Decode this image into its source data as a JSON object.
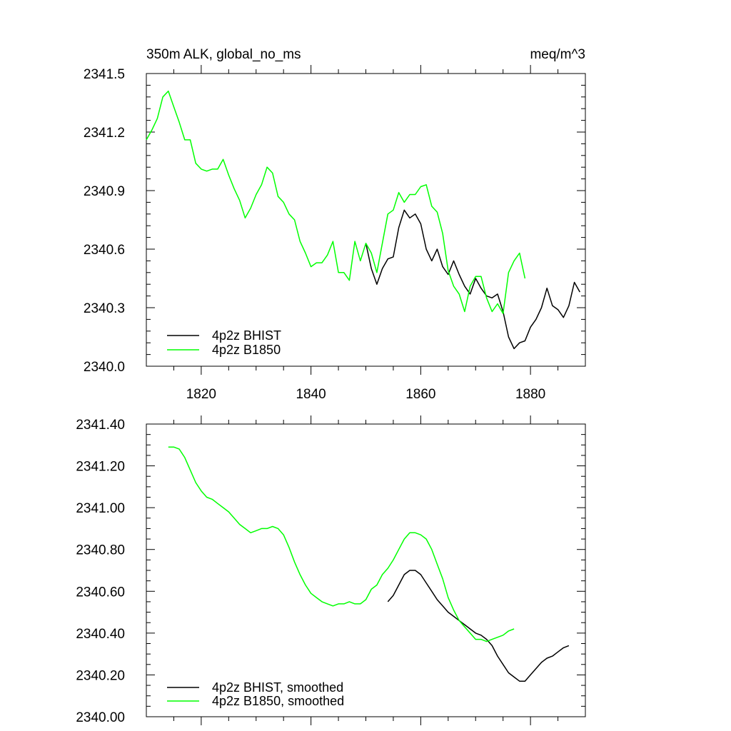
{
  "chart_data": [
    {
      "type": "line",
      "title_left": "350m ALK, global_no_ms",
      "title_right": "meq/m^3",
      "xlim": [
        1810,
        1890
      ],
      "ylim": [
        2340.0,
        2341.5
      ],
      "y_ticks": [
        2340.0,
        2340.3,
        2340.6,
        2340.9,
        2341.2,
        2341.5
      ],
      "y_tick_labels": [
        "2340.0",
        "2340.3",
        "2340.6",
        "2340.9",
        "2341.2",
        "2341.5"
      ],
      "x_ticks": [
        1820,
        1840,
        1860,
        1880
      ],
      "x_tick_labels": [
        "1820",
        "1840",
        "1860",
        "1880"
      ],
      "legend_position": "bottom-left",
      "series": [
        {
          "name": "4p2z BHIST",
          "color": "#000000",
          "x": [
            1850,
            1851,
            1852,
            1853,
            1854,
            1855,
            1856,
            1857,
            1858,
            1859,
            1860,
            1861,
            1862,
            1863,
            1864,
            1865,
            1866,
            1867,
            1868,
            1869,
            1870,
            1871,
            1872,
            1873,
            1874,
            1875,
            1876,
            1877,
            1878,
            1879,
            1880,
            1881,
            1882,
            1883,
            1884,
            1885,
            1886,
            1887,
            1888,
            1889
          ],
          "y": [
            2340.63,
            2340.5,
            2340.42,
            2340.5,
            2340.55,
            2340.56,
            2340.71,
            2340.8,
            2340.76,
            2340.78,
            2340.73,
            2340.6,
            2340.54,
            2340.6,
            2340.51,
            2340.47,
            2340.54,
            2340.47,
            2340.41,
            2340.37,
            2340.45,
            2340.4,
            2340.36,
            2340.35,
            2340.37,
            2340.28,
            2340.15,
            2340.09,
            2340.12,
            2340.13,
            2340.2,
            2340.24,
            2340.3,
            2340.4,
            2340.31,
            2340.29,
            2340.25,
            2340.31,
            2340.43,
            2340.38
          ]
        },
        {
          "name": "4p2z B1850",
          "color": "#00ff00",
          "x": [
            1810,
            1811,
            1812,
            1813,
            1814,
            1815,
            1816,
            1817,
            1818,
            1819,
            1820,
            1821,
            1822,
            1823,
            1824,
            1825,
            1826,
            1827,
            1828,
            1829,
            1830,
            1831,
            1832,
            1833,
            1834,
            1835,
            1836,
            1837,
            1838,
            1839,
            1840,
            1841,
            1842,
            1843,
            1844,
            1845,
            1846,
            1847,
            1848,
            1849,
            1850,
            1851,
            1852,
            1853,
            1854,
            1855,
            1856,
            1857,
            1858,
            1859,
            1860,
            1861,
            1862,
            1863,
            1864,
            1865,
            1866,
            1867,
            1868,
            1869,
            1870,
            1871,
            1872,
            1873,
            1874,
            1875,
            1876,
            1877,
            1878,
            1879
          ],
          "y": [
            2341.16,
            2341.21,
            2341.27,
            2341.38,
            2341.41,
            2341.33,
            2341.25,
            2341.16,
            2341.16,
            2341.04,
            2341.01,
            2341.0,
            2341.01,
            2341.01,
            2341.06,
            2340.98,
            2340.91,
            2340.85,
            2340.76,
            2340.81,
            2340.88,
            2340.93,
            2341.02,
            2340.99,
            2340.87,
            2340.84,
            2340.78,
            2340.75,
            2340.64,
            2340.58,
            2340.51,
            2340.53,
            2340.53,
            2340.57,
            2340.64,
            2340.48,
            2340.48,
            2340.44,
            2340.64,
            2340.54,
            2340.63,
            2340.58,
            2340.48,
            2340.63,
            2340.78,
            2340.8,
            2340.89,
            2340.84,
            2340.88,
            2340.88,
            2340.92,
            2340.93,
            2340.82,
            2340.79,
            2340.68,
            2340.49,
            2340.41,
            2340.37,
            2340.28,
            2340.41,
            2340.46,
            2340.46,
            2340.35,
            2340.28,
            2340.32,
            2340.27,
            2340.48,
            2340.54,
            2340.58,
            2340.45
          ]
        }
      ]
    },
    {
      "type": "line",
      "xlim": [
        1810,
        1890
      ],
      "ylim": [
        2340.0,
        2341.4
      ],
      "y_ticks": [
        2340.0,
        2340.2,
        2340.4,
        2340.6,
        2340.8,
        2341.0,
        2341.2,
        2341.4
      ],
      "y_tick_labels": [
        "2340.00",
        "2340.20",
        "2340.40",
        "2340.60",
        "2340.80",
        "2341.00",
        "2341.20",
        "2341.40"
      ],
      "x_ticks": [
        1820,
        1840,
        1860,
        1880
      ],
      "legend_position": "bottom-left",
      "series": [
        {
          "name": "4p2z BHIST, smoothed",
          "color": "#000000",
          "x": [
            1854,
            1855,
            1856,
            1857,
            1858,
            1859,
            1860,
            1861,
            1862,
            1863,
            1864,
            1865,
            1866,
            1867,
            1868,
            1869,
            1870,
            1871,
            1872,
            1873,
            1874,
            1875,
            1876,
            1877,
            1878,
            1879,
            1880,
            1881,
            1882,
            1883,
            1884,
            1885,
            1886,
            1887
          ],
          "y": [
            2340.55,
            2340.58,
            2340.63,
            2340.68,
            2340.7,
            2340.7,
            2340.68,
            2340.64,
            2340.6,
            2340.56,
            2340.53,
            2340.5,
            2340.48,
            2340.46,
            2340.44,
            2340.42,
            2340.4,
            2340.39,
            2340.37,
            2340.34,
            2340.29,
            2340.25,
            2340.21,
            2340.19,
            2340.17,
            2340.17,
            2340.2,
            2340.23,
            2340.26,
            2340.28,
            2340.29,
            2340.31,
            2340.33,
            2340.34
          ]
        },
        {
          "name": "4p2z B1850, smoothed",
          "color": "#00ff00",
          "x": [
            1814,
            1815,
            1816,
            1817,
            1818,
            1819,
            1820,
            1821,
            1822,
            1823,
            1824,
            1825,
            1826,
            1827,
            1828,
            1829,
            1830,
            1831,
            1832,
            1833,
            1834,
            1835,
            1836,
            1837,
            1838,
            1839,
            1840,
            1841,
            1842,
            1843,
            1844,
            1845,
            1846,
            1847,
            1848,
            1849,
            1850,
            1851,
            1852,
            1853,
            1854,
            1855,
            1856,
            1857,
            1858,
            1859,
            1860,
            1861,
            1862,
            1863,
            1864,
            1865,
            1866,
            1867,
            1868,
            1869,
            1870,
            1871,
            1872,
            1873,
            1874,
            1875,
            1876,
            1877
          ],
          "y": [
            2341.29,
            2341.29,
            2341.28,
            2341.24,
            2341.18,
            2341.12,
            2341.08,
            2341.05,
            2341.04,
            2341.02,
            2341.0,
            2340.98,
            2340.95,
            2340.92,
            2340.9,
            2340.88,
            2340.89,
            2340.9,
            2340.9,
            2340.91,
            2340.9,
            2340.87,
            2340.81,
            2340.74,
            2340.68,
            2340.63,
            2340.59,
            2340.57,
            2340.55,
            2340.54,
            2340.53,
            2340.54,
            2340.54,
            2340.55,
            2340.54,
            2340.54,
            2340.56,
            2340.61,
            2340.63,
            2340.68,
            2340.71,
            2340.75,
            2340.8,
            2340.85,
            2340.88,
            2340.88,
            2340.87,
            2340.85,
            2340.8,
            2340.73,
            2340.66,
            2340.57,
            2340.51,
            2340.46,
            2340.43,
            2340.4,
            2340.37,
            2340.37,
            2340.36,
            2340.37,
            2340.38,
            2340.39,
            2340.41,
            2340.42
          ]
        }
      ]
    }
  ]
}
